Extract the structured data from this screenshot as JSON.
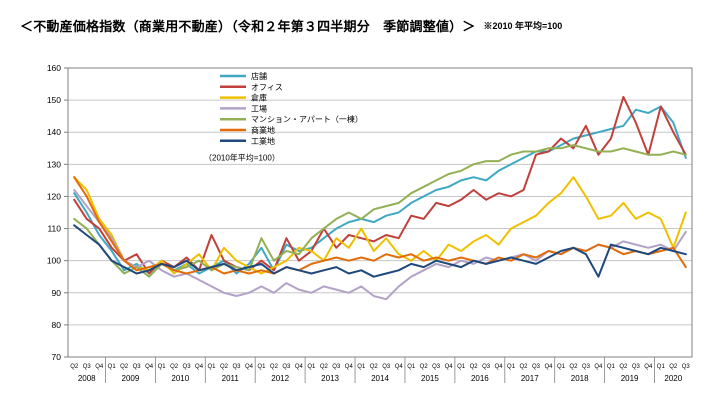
{
  "header": {
    "title": "＜不動産価格指数（商業用不動産）（令和２年第３四半期分　季節調整値）＞",
    "note": "※2010 年平均=100"
  },
  "chart_data": {
    "type": "line",
    "title": "不動産価格指数（商業用不動産） 令和2年第3四半期分 季節調整値",
    "legend_note": "（2010年平均=100）",
    "legend_position": "top-center-inside",
    "grid": true,
    "ylim": [
      70,
      160
    ],
    "ytick_interval": 10,
    "x_quarters": [
      "Q2",
      "Q3",
      "Q4",
      "Q1",
      "Q2",
      "Q3",
      "Q4",
      "Q1",
      "Q2",
      "Q3",
      "Q4",
      "Q1",
      "Q2",
      "Q3",
      "Q4",
      "Q1",
      "Q2",
      "Q3",
      "Q4",
      "Q1",
      "Q2",
      "Q3",
      "Q4",
      "Q1",
      "Q2",
      "Q3",
      "Q4",
      "Q1",
      "Q2",
      "Q3",
      "Q4",
      "Q1",
      "Q2",
      "Q3",
      "Q4",
      "Q1",
      "Q2",
      "Q3",
      "Q4",
      "Q1",
      "Q2",
      "Q3",
      "Q4",
      "Q1",
      "Q2",
      "Q3",
      "Q4",
      "Q1",
      "Q2",
      "Q3"
    ],
    "x_years": [
      {
        "label": "2008",
        "quarters": 3
      },
      {
        "label": "2009",
        "quarters": 4
      },
      {
        "label": "2010",
        "quarters": 4
      },
      {
        "label": "2011",
        "quarters": 4
      },
      {
        "label": "2012",
        "quarters": 4
      },
      {
        "label": "2013",
        "quarters": 4
      },
      {
        "label": "2014",
        "quarters": 4
      },
      {
        "label": "2015",
        "quarters": 4
      },
      {
        "label": "2016",
        "quarters": 4
      },
      {
        "label": "2017",
        "quarters": 4
      },
      {
        "label": "2018",
        "quarters": 4
      },
      {
        "label": "2019",
        "quarters": 4
      },
      {
        "label": "2020",
        "quarters": 3
      }
    ],
    "series": [
      {
        "name": "店舗",
        "color": "#3FA8C4",
        "values": [
          121,
          115,
          108,
          103,
          97,
          99,
          96,
          100,
          97,
          99,
          96,
          98,
          100,
          96,
          99,
          104,
          97,
          105,
          103,
          104,
          107,
          110,
          112,
          113,
          112,
          114,
          115,
          118,
          120,
          122,
          123,
          125,
          126,
          125,
          128,
          130,
          132,
          134,
          134,
          136,
          138,
          139,
          140,
          141,
          142,
          147,
          146,
          148,
          143,
          132
        ]
      },
      {
        "name": "オフィス",
        "color": "#C0403C",
        "values": [
          119,
          113,
          110,
          104,
          100,
          102,
          96,
          100,
          98,
          101,
          97,
          108,
          100,
          98,
          97,
          100,
          97,
          107,
          100,
          103,
          110,
          104,
          108,
          107,
          106,
          108,
          107,
          114,
          113,
          118,
          117,
          119,
          122,
          119,
          121,
          120,
          122,
          133,
          134,
          138,
          135,
          142,
          133,
          138,
          151,
          143,
          133,
          148,
          140,
          133
        ]
      },
      {
        "name": "倉庫",
        "color": "#EFC000",
        "values": [
          126,
          122,
          113,
          108,
          100,
          98,
          97,
          100,
          96,
          99,
          102,
          97,
          104,
          100,
          98,
          96,
          98,
          100,
          104,
          103,
          100,
          107,
          104,
          110,
          103,
          107,
          102,
          100,
          103,
          100,
          105,
          103,
          106,
          108,
          105,
          110,
          112,
          114,
          118,
          121,
          126,
          120,
          113,
          114,
          118,
          113,
          115,
          113,
          104,
          115
        ]
      },
      {
        "name": "工場",
        "color": "#B3A2C7",
        "values": [
          122,
          117,
          112,
          107,
          100,
          98,
          100,
          97,
          95,
          96,
          94,
          92,
          90,
          89,
          90,
          92,
          90,
          93,
          91,
          90,
          92,
          91,
          90,
          92,
          89,
          88,
          92,
          95,
          97,
          99,
          98,
          100,
          99,
          101,
          100,
          101,
          102,
          100,
          103,
          102,
          104,
          103,
          105,
          104,
          106,
          105,
          104,
          105,
          103,
          109
        ]
      },
      {
        "name": "マンション・アパート（一棟）",
        "color": "#94B054",
        "values": [
          113,
          110,
          105,
          100,
          96,
          98,
          95,
          99,
          97,
          98,
          100,
          97,
          99,
          98,
          97,
          107,
          100,
          103,
          102,
          107,
          110,
          113,
          115,
          113,
          116,
          117,
          118,
          121,
          123,
          125,
          127,
          128,
          130,
          131,
          131,
          133,
          134,
          134,
          135,
          135,
          136,
          135,
          134,
          134,
          135,
          134,
          133,
          133,
          134,
          133
        ]
      },
      {
        "name": "商業地",
        "color": "#E36C0A",
        "values": [
          126,
          120,
          112,
          106,
          100,
          97,
          98,
          99,
          97,
          96,
          97,
          98,
          96,
          97,
          96,
          97,
          96,
          98,
          97,
          99,
          100,
          101,
          100,
          101,
          100,
          102,
          101,
          102,
          100,
          101,
          100,
          101,
          100,
          99,
          101,
          100,
          102,
          101,
          103,
          102,
          104,
          103,
          105,
          104,
          102,
          103,
          102,
          103,
          104,
          98
        ]
      },
      {
        "name": "工業地",
        "color": "#1F497D",
        "values": [
          111,
          108,
          105,
          100,
          98,
          96,
          97,
          99,
          98,
          100,
          97,
          98,
          99,
          97,
          98,
          99,
          96,
          98,
          97,
          96,
          97,
          98,
          96,
          97,
          95,
          96,
          97,
          99,
          98,
          100,
          99,
          98,
          100,
          99,
          100,
          101,
          100,
          99,
          101,
          103,
          104,
          102,
          95,
          105,
          104,
          103,
          102,
          104,
          103,
          102
        ]
      }
    ]
  }
}
